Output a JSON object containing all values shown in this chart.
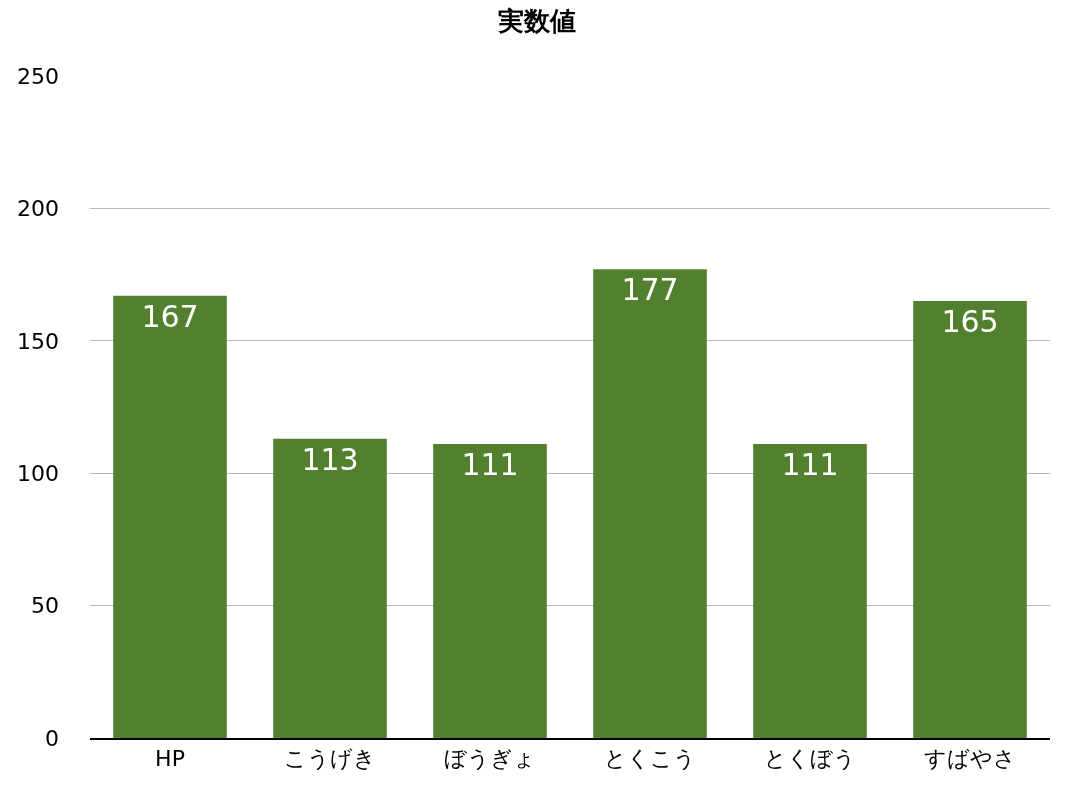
{
  "chart_data": {
    "type": "bar",
    "title": "実数値",
    "categories": [
      "HP",
      "こうげき",
      "ぼうぎょ",
      "とくこう",
      "とくぼう",
      "すばやさ"
    ],
    "values": [
      167,
      113,
      111,
      177,
      111,
      165
    ],
    "color": "#52802f",
    "ylim": [
      0,
      250
    ],
    "yticks": [
      0,
      50,
      100,
      150,
      200,
      250
    ],
    "grid": "y",
    "data_labels": true,
    "legend": false
  }
}
